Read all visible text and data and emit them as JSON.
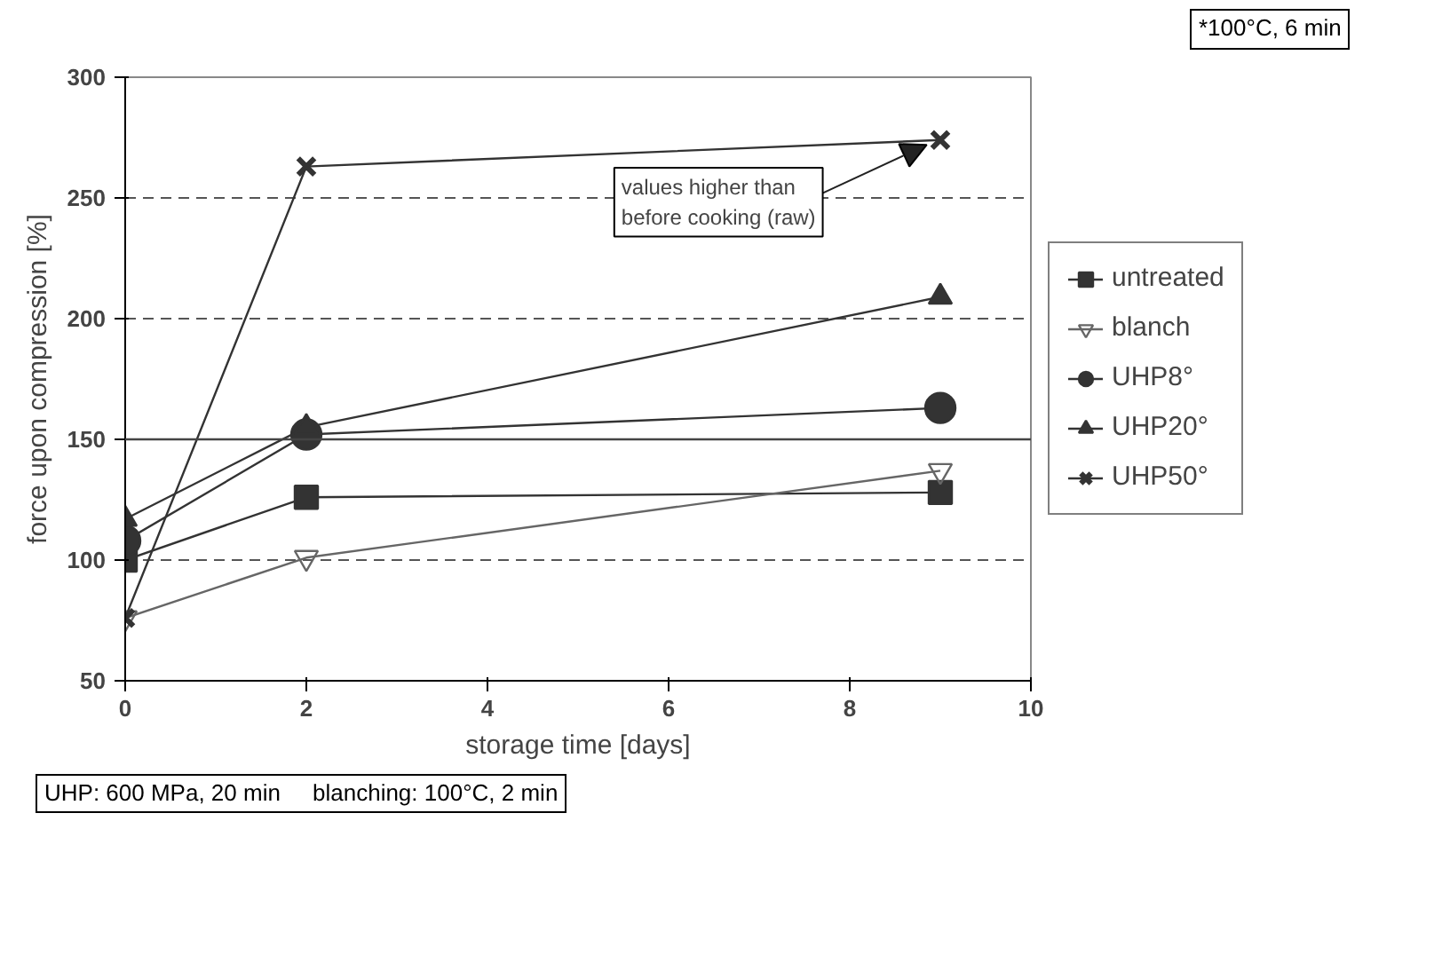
{
  "chart_data": {
    "type": "line",
    "xlabel": "storage time [days]",
    "ylabel": "force upon compression [%]",
    "x": [
      0,
      2,
      9
    ],
    "series": [
      {
        "name": "untreated",
        "color": "#333333",
        "marker": "square",
        "values": [
          100,
          126,
          128
        ]
      },
      {
        "name": "blanch",
        "color": "#666666",
        "marker": "triangle_down",
        "values": [
          76,
          101,
          137
        ]
      },
      {
        "name": "UHP8°",
        "color": "#333333",
        "marker": "circle",
        "values": [
          108,
          152,
          163
        ]
      },
      {
        "name": "UHP20°",
        "color": "#333333",
        "marker": "triangle",
        "values": [
          117,
          155,
          209
        ]
      },
      {
        "name": "UHP50°",
        "color": "#333333",
        "marker": "cross",
        "values": [
          76,
          263,
          274
        ]
      }
    ],
    "xlim": [
      0,
      10
    ],
    "xticks": [
      0,
      2,
      4,
      6,
      8,
      10
    ],
    "ylim": [
      50,
      300
    ],
    "yticks": [
      50,
      100,
      150,
      200,
      250,
      300
    ],
    "grid": "y",
    "legend": "right",
    "ref_lines": [
      {
        "axis": "y",
        "value": 150,
        "color": "#444444",
        "line_style": "solid"
      }
    ],
    "annotations": [
      {
        "text": "values higher than\nbefore cooking (raw)",
        "x": 9,
        "y": 274
      },
      "*100°C, 6 min",
      "UHP: 600 MPa, 20 min     blanching: 100°C, 2 min"
    ]
  }
}
